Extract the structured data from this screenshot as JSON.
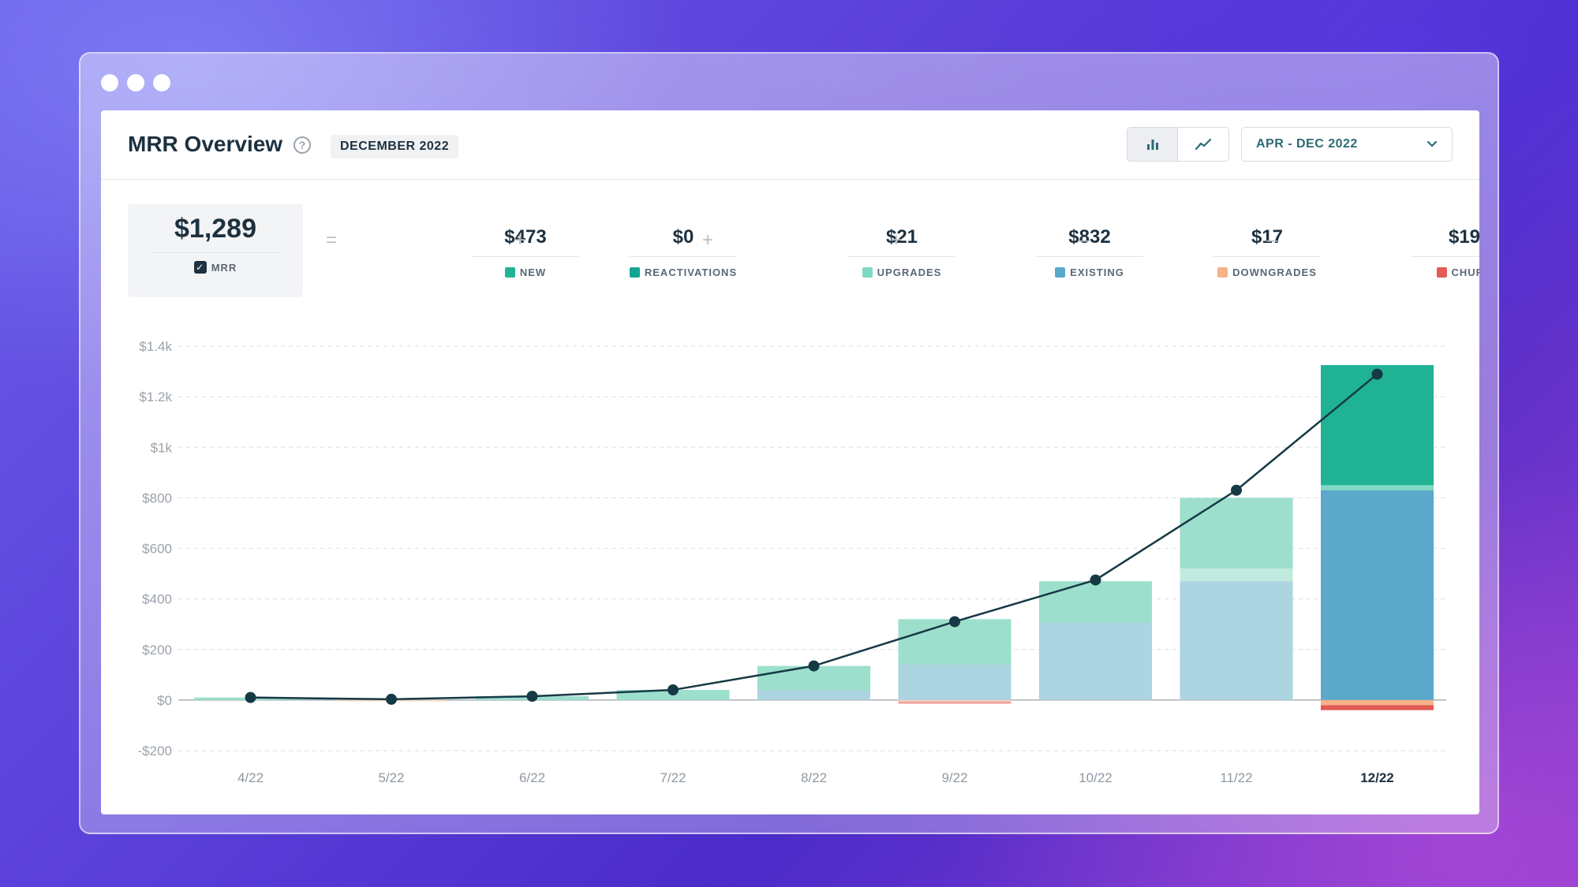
{
  "header": {
    "title": "MRR Overview",
    "period_badge": "DECEMBER 2022",
    "date_range": "APR - DEC 2022",
    "view_modes": [
      "bar-chart-icon",
      "line-chart-icon"
    ],
    "active_view": "bar-chart-icon"
  },
  "summary": {
    "mrr": {
      "value": "$1,289",
      "label": "MRR"
    },
    "components": [
      {
        "value": "$473",
        "label": "NEW",
        "color": "#1fb394"
      },
      {
        "value": "$0",
        "label": "REACTIVATIONS",
        "color": "#14a592"
      },
      {
        "value": "$21",
        "label": "UPGRADES",
        "color": "#7fd8c3"
      },
      {
        "value": "$832",
        "label": "EXISTING",
        "color": "#5ba8cb"
      },
      {
        "value": "$17",
        "label": "DOWNGRADES",
        "color": "#f8b287"
      },
      {
        "value": "$19",
        "label": "CHURN",
        "color": "#e25b54"
      }
    ],
    "operators": [
      "=",
      "+",
      "+",
      "+",
      "–",
      "–"
    ]
  },
  "chart_data": {
    "type": "bar",
    "stacked": true,
    "categories": [
      "4/22",
      "5/22",
      "6/22",
      "7/22",
      "8/22",
      "9/22",
      "10/22",
      "11/22",
      "12/22"
    ],
    "highlighted_category": "12/22",
    "yticks": [
      "$1.4k",
      "$1.2k",
      "$1k",
      "$800",
      "$600",
      "$400",
      "$200",
      "$0",
      "-$200"
    ],
    "ylim": [
      -200,
      1400
    ],
    "grid": true,
    "series": [
      {
        "name": "EXISTING",
        "color": "#5ba8cb",
        "values": [
          0,
          0,
          0,
          0,
          40,
          140,
          305,
          470,
          830
        ]
      },
      {
        "name": "UPGRADES",
        "color": "#7fd8c3",
        "values": [
          0,
          0,
          0,
          0,
          0,
          0,
          0,
          50,
          20
        ]
      },
      {
        "name": "NEW",
        "color": "#1fb394",
        "values": [
          10,
          0,
          15,
          40,
          95,
          180,
          165,
          280,
          475
        ]
      },
      {
        "name": "DOWNGRADES",
        "color": "#f8b287",
        "values": [
          0,
          -5,
          0,
          0,
          0,
          -5,
          0,
          0,
          -20
        ]
      },
      {
        "name": "CHURN",
        "color": "#e25b54",
        "values": [
          0,
          0,
          0,
          0,
          0,
          -10,
          0,
          0,
          -20
        ]
      }
    ],
    "line": {
      "name": "MRR",
      "color": "#163a45",
      "values": [
        10,
        3,
        15,
        40,
        135,
        310,
        475,
        830,
        1289
      ]
    }
  }
}
